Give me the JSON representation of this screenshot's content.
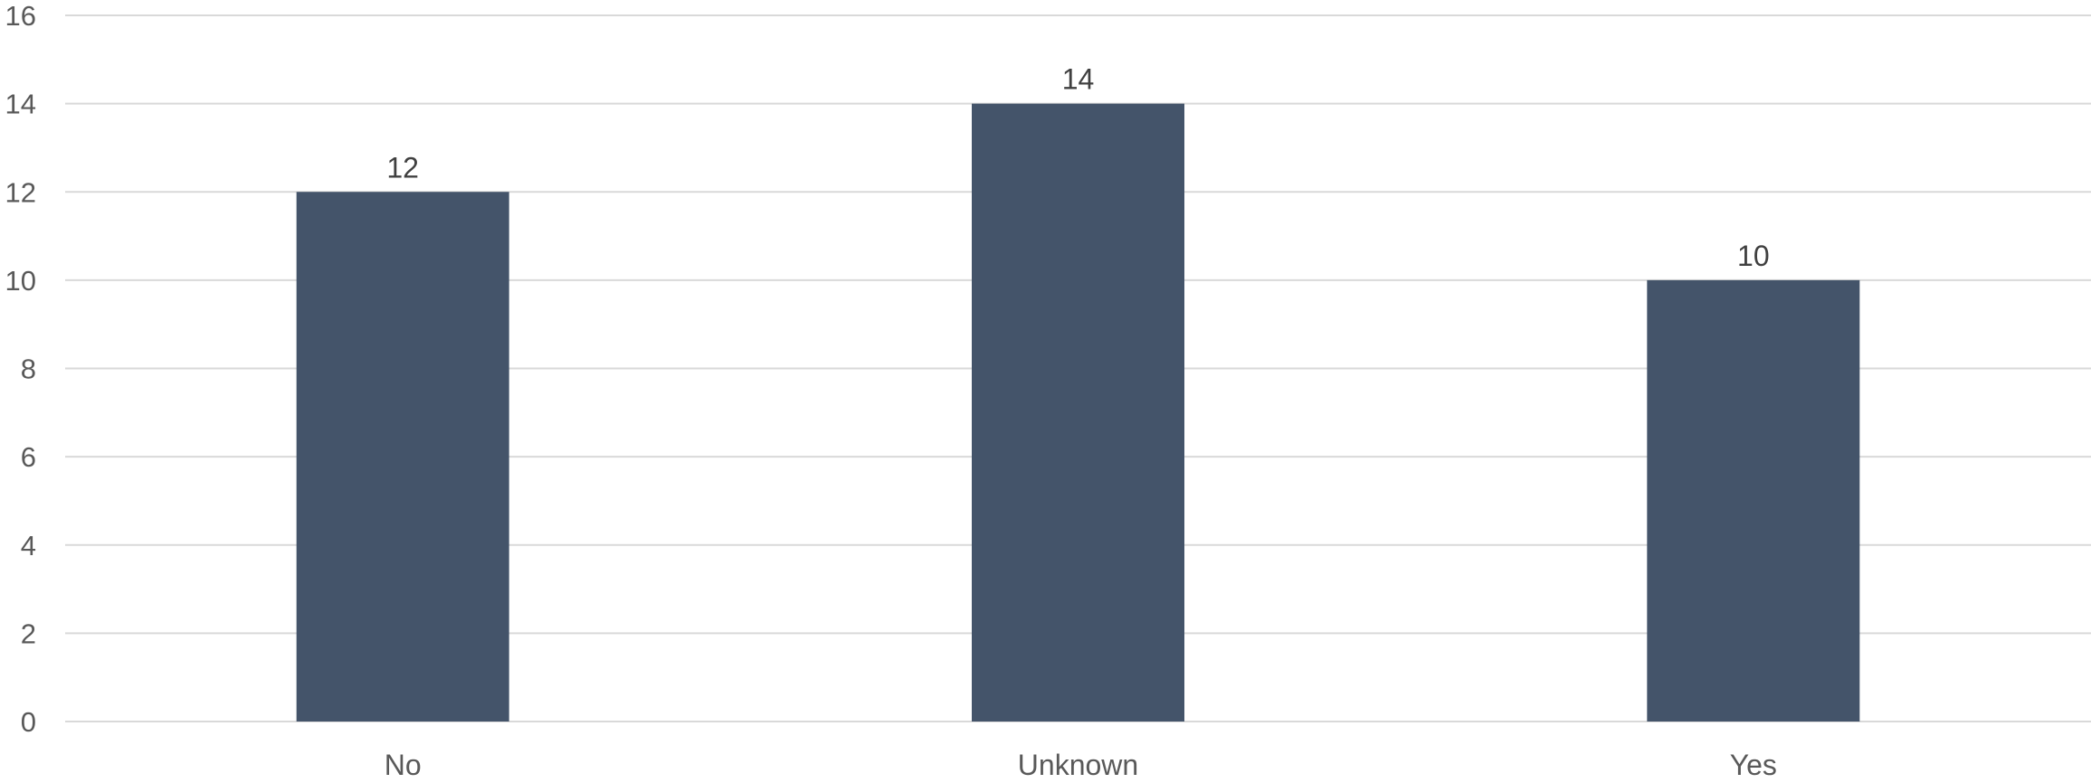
{
  "chart_data": {
    "type": "bar",
    "title": "",
    "xlabel": "",
    "ylabel": "",
    "categories": [
      "No",
      "Unknown",
      "Yes"
    ],
    "values": [
      12,
      14,
      10
    ],
    "ylim": [
      0,
      16
    ],
    "y_ticks": [
      0,
      2,
      4,
      6,
      8,
      10,
      12,
      14,
      16
    ],
    "grid": true,
    "legend": "none",
    "data_labels": true,
    "bar_color": "#44546a"
  }
}
